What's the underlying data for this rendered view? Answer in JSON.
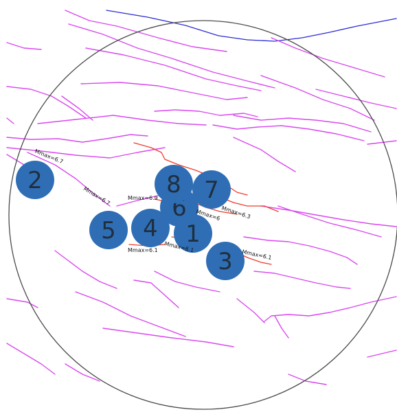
{
  "sites": [
    {
      "id": "site-1",
      "label": "1"
    },
    {
      "id": "site-2",
      "label": "2"
    },
    {
      "id": "site-3",
      "label": "3"
    },
    {
      "id": "site-4",
      "label": "4"
    },
    {
      "id": "site-5",
      "label": "5"
    },
    {
      "id": "site-6",
      "label": "6"
    },
    {
      "id": "site-7",
      "label": "7"
    },
    {
      "id": "site-8",
      "label": "8"
    }
  ],
  "mmax_labels": [
    "Mmax=6.7",
    "Mmax=6.7",
    "Mmax=6.9",
    "Mmax=6",
    "Mmax=6.3",
    "Mmax=6.1",
    "Mmax=6.1",
    "Mmax=6.1"
  ],
  "colors": {
    "fault": "#d946ef",
    "active_fault": "#ef3b2c",
    "boundary_line": "#2b2bd4",
    "site_marker": "#2f6eb5"
  }
}
